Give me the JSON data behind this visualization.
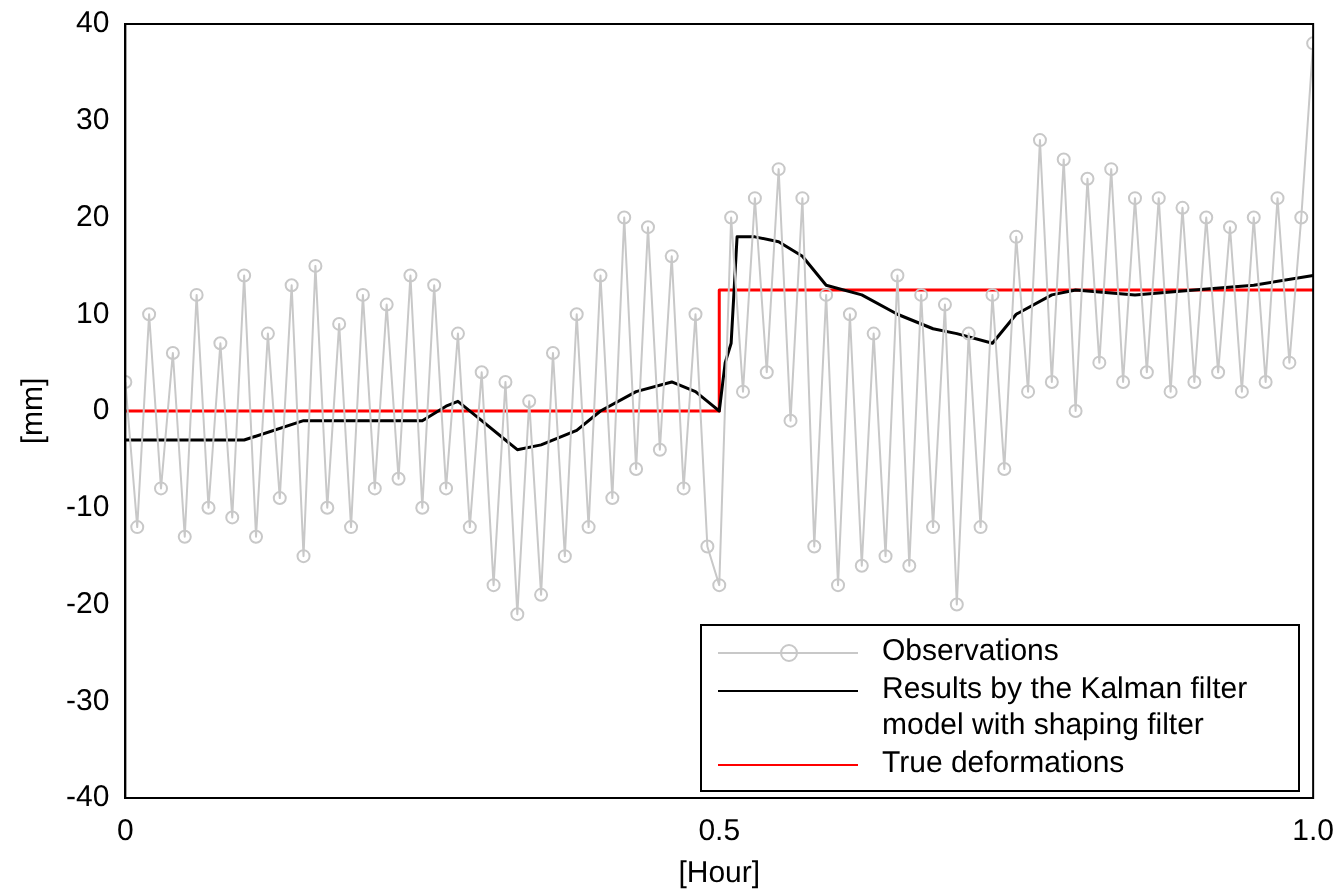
{
  "chart_data": {
    "type": "line",
    "xlabel": "[Hour]",
    "ylabel": "[mm]",
    "xlim": [
      0,
      1
    ],
    "xticks": [
      0,
      0.5,
      {
        "value": 1,
        "label": "1.0"
      }
    ],
    "ylim": [
      -40,
      40
    ],
    "yticks": [
      -40,
      -30,
      -20,
      -10,
      0,
      10,
      20,
      30,
      40
    ],
    "grid": false,
    "legend": "bottom right",
    "series": [
      {
        "name": "Observations",
        "color": "#c8c8c8",
        "marker": "circle",
        "x": [
          0,
          0.01,
          0.02,
          0.03,
          0.04,
          0.05,
          0.06,
          0.07,
          0.08,
          0.09,
          0.1,
          0.11,
          0.12,
          0.13,
          0.14,
          0.15,
          0.16,
          0.17,
          0.18,
          0.19,
          0.2,
          0.21,
          0.22,
          0.23,
          0.24,
          0.25,
          0.26,
          0.27,
          0.28,
          0.29,
          0.3,
          0.31,
          0.32,
          0.33,
          0.34,
          0.35,
          0.36,
          0.37,
          0.38,
          0.39,
          0.4,
          0.41,
          0.42,
          0.43,
          0.44,
          0.45,
          0.46,
          0.47,
          0.48,
          0.49,
          0.5,
          0.51,
          0.52,
          0.53,
          0.54,
          0.55,
          0.56,
          0.57,
          0.58,
          0.59,
          0.6,
          0.61,
          0.62,
          0.63,
          0.64,
          0.65,
          0.66,
          0.67,
          0.68,
          0.69,
          0.7,
          0.71,
          0.72,
          0.73,
          0.74,
          0.75,
          0.76,
          0.77,
          0.78,
          0.79,
          0.8,
          0.81,
          0.82,
          0.83,
          0.84,
          0.85,
          0.86,
          0.87,
          0.88,
          0.89,
          0.9,
          0.91,
          0.92,
          0.93,
          0.94,
          0.95,
          0.96,
          0.97,
          0.98,
          0.99,
          1
        ],
        "values": [
          3,
          -12,
          10,
          -8,
          6,
          -13,
          12,
          -10,
          7,
          -11,
          14,
          -13,
          8,
          -9,
          13,
          -15,
          15,
          -10,
          9,
          -12,
          12,
          -8,
          11,
          -7,
          14,
          -10,
          13,
          -8,
          8,
          -12,
          4,
          -18,
          3,
          -21,
          1,
          -19,
          6,
          -15,
          10,
          -12,
          14,
          -9,
          20,
          -6,
          19,
          -4,
          16,
          -8,
          10,
          -14,
          -18,
          20,
          2,
          22,
          4,
          25,
          -1,
          22,
          -14,
          12,
          -18,
          10,
          -16,
          8,
          -15,
          14,
          -16,
          12,
          -12,
          11,
          -20,
          8,
          -12,
          12,
          -6,
          18,
          2,
          28,
          3,
          26,
          0,
          24,
          5,
          25,
          3,
          22,
          4,
          22,
          2,
          21,
          3,
          20,
          4,
          19,
          2,
          20,
          3,
          22,
          5,
          20,
          38
        ]
      },
      {
        "name": "Results by the Kalman filter model with shaping filter",
        "color": "#000000",
        "marker": "none",
        "x": [
          0,
          0.05,
          0.1,
          0.15,
          0.2,
          0.25,
          0.27,
          0.28,
          0.3,
          0.33,
          0.35,
          0.38,
          0.4,
          0.43,
          0.46,
          0.48,
          0.495,
          0.5,
          0.505,
          0.51,
          0.515,
          0.53,
          0.55,
          0.57,
          0.59,
          0.62,
          0.65,
          0.68,
          0.7,
          0.73,
          0.75,
          0.78,
          0.8,
          0.85,
          0.9,
          0.95,
          1
        ],
        "values": [
          -3,
          -3,
          -3,
          -1,
          -1,
          -1,
          0.5,
          1,
          -1,
          -4,
          -3.5,
          -2,
          0,
          2,
          3,
          2,
          0.5,
          0,
          5,
          7,
          18,
          18,
          17.5,
          16,
          13,
          12,
          10,
          8.5,
          8,
          7,
          10,
          12,
          12.5,
          12,
          12.5,
          13,
          14
        ]
      },
      {
        "name": "True deformations",
        "color": "#ff0000",
        "marker": "none",
        "x": [
          0,
          0.5,
          0.5,
          1
        ],
        "values": [
          0,
          0,
          12.5,
          12.5
        ]
      }
    ]
  }
}
